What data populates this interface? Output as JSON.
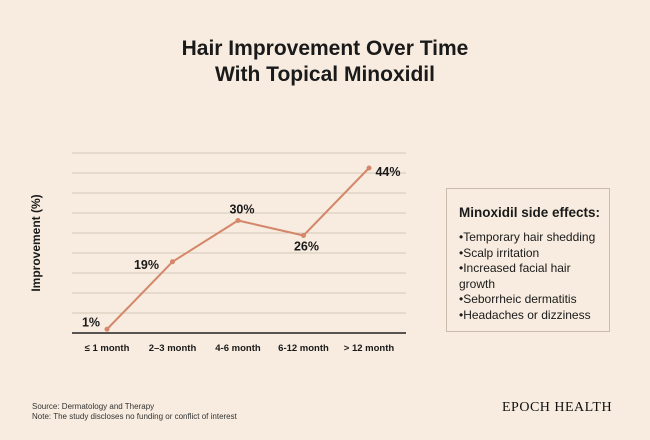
{
  "chart_data": {
    "type": "line",
    "title": [
      "Hair Improvement Over Time",
      "With Topical Minoxidil"
    ],
    "ylabel": "Improvement (%)",
    "xlabel": "",
    "categories": [
      "≤ 1 month",
      "2–3 month",
      "4-6 month",
      "6-12 month",
      "> 12 month"
    ],
    "values": [
      1,
      19,
      30,
      26,
      44
    ],
    "data_labels": [
      "1%",
      "19%",
      "30%",
      "26%",
      "44%"
    ],
    "ylim": [
      0,
      48
    ],
    "grid": true,
    "line_color": "#d4876a"
  },
  "side_effects": {
    "title": "Minoxidil side effects:",
    "items": [
      "•Temporary hair shedding",
      "•Scalp irritation",
      "•Increased facial hair growth",
      "•Seborrheic dermatitis",
      "•Headaches or dizziness"
    ]
  },
  "footer": {
    "source": "Source: Dermatology and Therapy",
    "note": "Note: The study discloses no funding or conflict of interest",
    "brand": "EPOCH HEALTH"
  }
}
